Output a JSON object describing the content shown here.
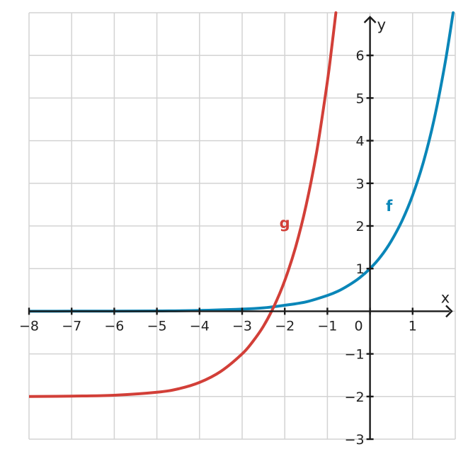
{
  "chart_data": {
    "type": "line",
    "title": "",
    "xlabel": "x",
    "ylabel": "y",
    "xlim": [
      -8,
      2
    ],
    "ylim": [
      -3,
      7
    ],
    "grid": true,
    "x_ticks": [
      -8,
      -7,
      -6,
      -5,
      -4,
      -3,
      -2,
      -1,
      0,
      1
    ],
    "x_tick_labels": [
      "−8",
      "−7",
      "−6",
      "−5",
      "−4",
      "−3",
      "−2",
      "−1",
      "0",
      "1"
    ],
    "y_ticks": [
      -3,
      -2,
      -1,
      1,
      2,
      3,
      4,
      5,
      6
    ],
    "y_tick_labels": [
      "−3",
      "−2",
      "−1",
      "1",
      "2",
      "3",
      "4",
      "5",
      "6"
    ],
    "series": [
      {
        "name": "f",
        "color": "#0a86b8",
        "label_at": [
          0.45,
          2.35
        ],
        "x": [
          -8,
          -7,
          -6,
          -5,
          -4,
          -3,
          -2.5,
          -2,
          -1.5,
          -1,
          -0.75,
          -0.5,
          -0.25,
          0,
          0.25,
          0.5,
          0.75,
          1,
          1.25,
          1.5,
          1.75,
          1.95
        ],
        "y": [
          0.0003,
          0.0009,
          0.0025,
          0.0067,
          0.018,
          0.05,
          0.08,
          0.14,
          0.22,
          0.37,
          0.47,
          0.61,
          0.78,
          1.0,
          1.28,
          1.65,
          2.12,
          2.72,
          3.49,
          4.48,
          5.75,
          7.0
        ]
      },
      {
        "name": "g",
        "color": "#d23f38",
        "label_at": [
          -2.0,
          1.95
        ],
        "x": [
          -8,
          -7,
          -6,
          -5,
          -4.5,
          -4,
          -3.5,
          -3,
          -2.75,
          -2.5,
          -2.25,
          -2,
          -1.75,
          -1.5,
          -1.25,
          -1,
          -0.9,
          -0.8
        ],
        "y": [
          -2.0,
          -1.99,
          -1.97,
          -1.9,
          -1.82,
          -1.67,
          -1.41,
          -1.0,
          -0.71,
          -0.35,
          0.12,
          0.72,
          1.49,
          2.48,
          3.75,
          5.39,
          6.17,
          7.0
        ]
      }
    ]
  }
}
